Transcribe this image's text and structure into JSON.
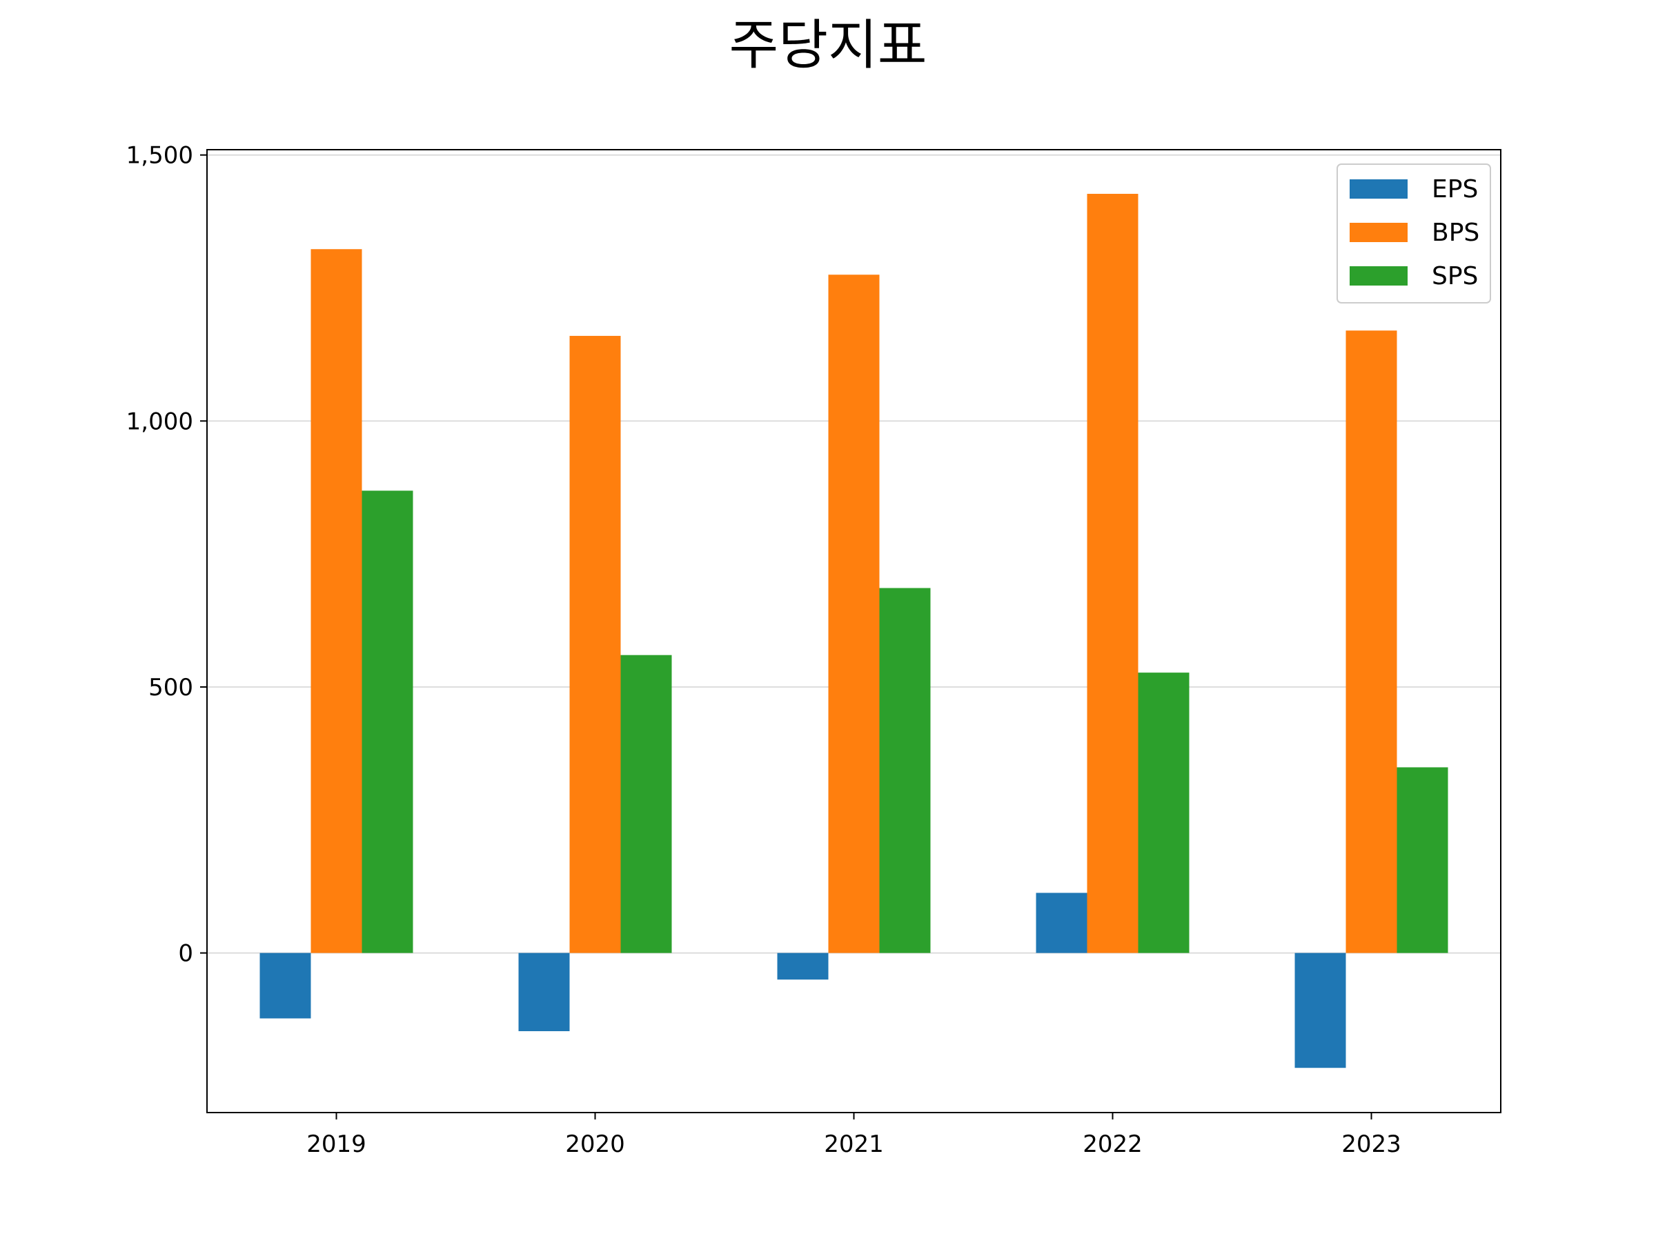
{
  "chart_data": {
    "type": "bar",
    "title": "주당지표",
    "xlabel": "",
    "ylabel": "",
    "categories": [
      "2019",
      "2020",
      "2021",
      "2022",
      "2023"
    ],
    "series": [
      {
        "name": "EPS",
        "color": "#1f77b4",
        "values": [
          -123,
          -147,
          -50,
          113,
          -216
        ]
      },
      {
        "name": "BPS",
        "color": "#ff7f0e",
        "values": [
          1323,
          1160,
          1275,
          1427,
          1170
        ]
      },
      {
        "name": "SPS",
        "color": "#2ca02c",
        "values": [
          869,
          560,
          686,
          527,
          349
        ]
      }
    ],
    "ylim": [
      -300,
      1510
    ],
    "yticks": [
      0,
      500,
      1000,
      1500
    ],
    "ytick_labels": [
      "0",
      "500",
      "1,000",
      "1,500"
    ],
    "grid": "horizontal",
    "legend_position": "top-right"
  }
}
